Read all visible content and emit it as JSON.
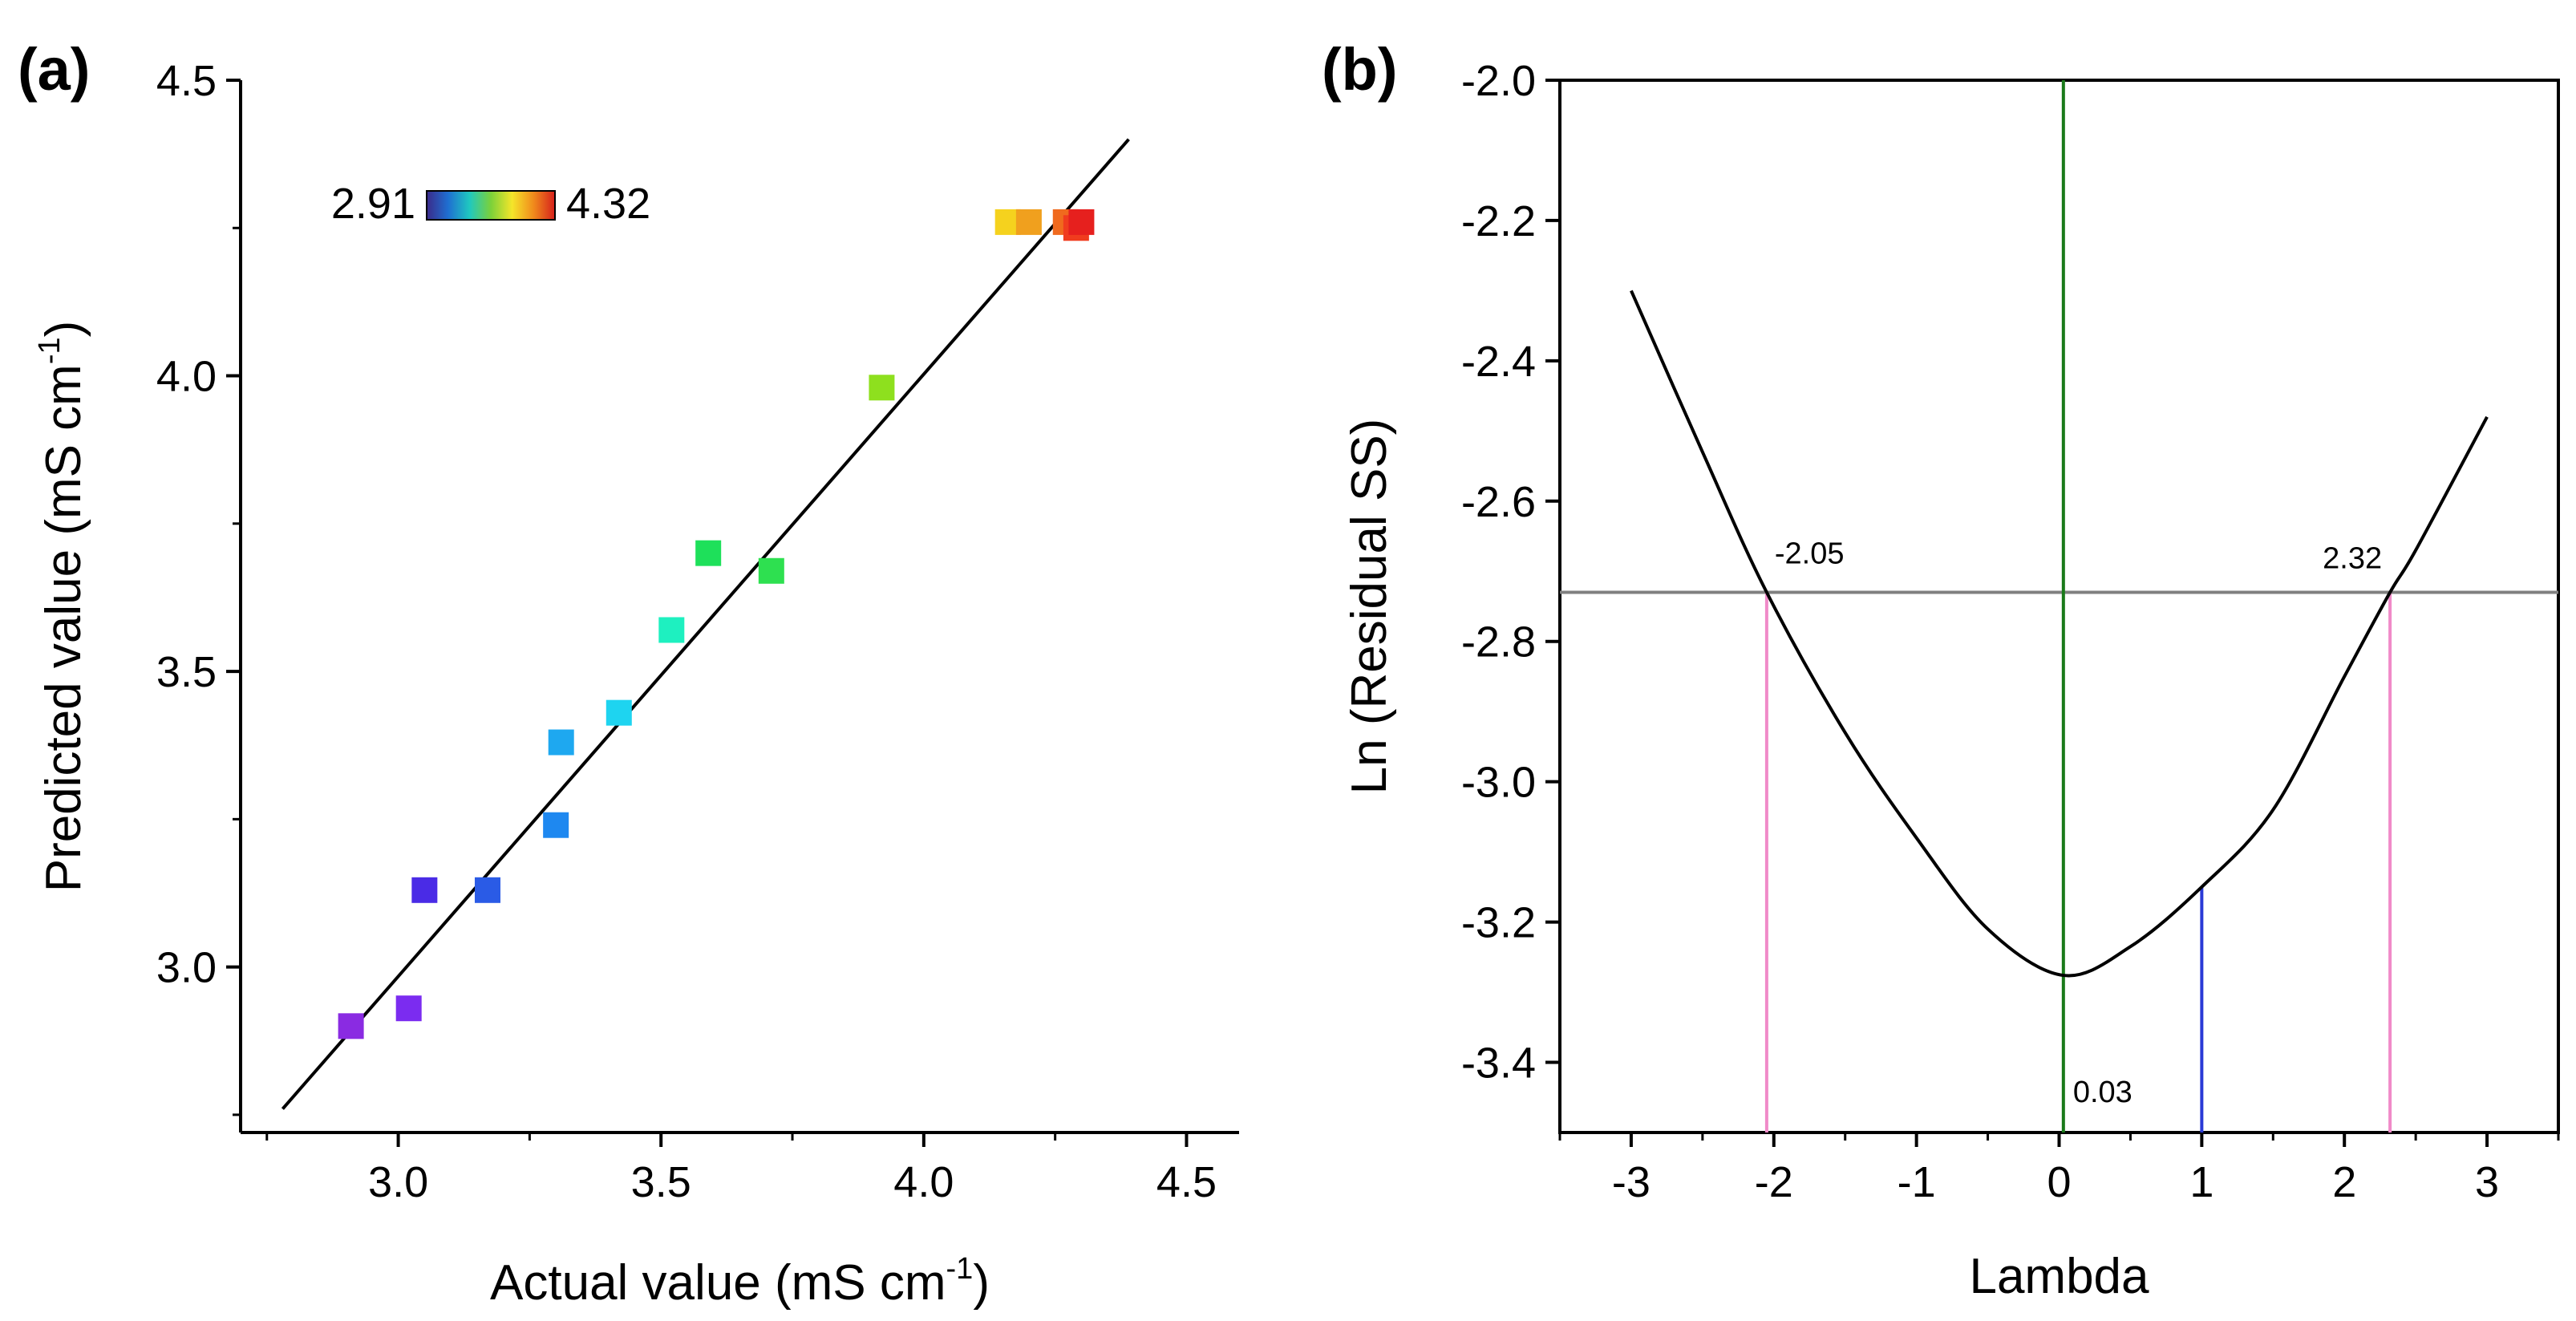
{
  "chart_data": [
    {
      "type": "scatter",
      "panel_label": "(a)",
      "xlabel": "Actual value (mS cm",
      "xlabel_sup": "-1",
      "xlabel_end": ")",
      "ylabel": "Predicted value (mS cm",
      "ylabel_sup": "-1",
      "ylabel_end": ")",
      "xlim": [
        2.7,
        4.6
      ],
      "ylim": [
        2.72,
        4.5
      ],
      "xticks": [
        3.0,
        3.5,
        4.0,
        4.5
      ],
      "xtick_labels": [
        "3.0",
        "3.5",
        "4.0",
        "4.5"
      ],
      "yticks": [
        3.0,
        3.5,
        4.0,
        4.5
      ],
      "ytick_labels": [
        "3.0",
        "3.5",
        "4.0",
        "4.5"
      ],
      "colorbar": {
        "min_label": "2.91",
        "max_label": "4.32",
        "colors": [
          "#3b2a8a",
          "#1f6fd1",
          "#1fc8c0",
          "#7bd13a",
          "#f5e52a",
          "#f08a1c",
          "#d6201c"
        ]
      },
      "fit_line": {
        "x": [
          2.78,
          4.39
        ],
        "y": [
          2.76,
          4.4
        ]
      },
      "points": [
        {
          "x": 2.91,
          "y": 2.9,
          "color": "#8a2be2"
        },
        {
          "x": 3.02,
          "y": 2.93,
          "color": "#7b2cf0"
        },
        {
          "x": 3.05,
          "y": 3.13,
          "color": "#4a2be6"
        },
        {
          "x": 3.17,
          "y": 3.13,
          "color": "#2a5be6"
        },
        {
          "x": 3.3,
          "y": 3.24,
          "color": "#1e88f0"
        },
        {
          "x": 3.31,
          "y": 3.38,
          "color": "#1ea8f0"
        },
        {
          "x": 3.42,
          "y": 3.43,
          "color": "#1ed4f0"
        },
        {
          "x": 3.52,
          "y": 3.57,
          "color": "#1ef0c0"
        },
        {
          "x": 3.59,
          "y": 3.7,
          "color": "#1ee05a"
        },
        {
          "x": 3.71,
          "y": 3.67,
          "color": "#2ee050"
        },
        {
          "x": 3.92,
          "y": 3.98,
          "color": "#8ee01e"
        },
        {
          "x": 4.16,
          "y": 4.26,
          "color": "#f5d21e"
        },
        {
          "x": 4.2,
          "y": 4.26,
          "color": "#f0a01e"
        },
        {
          "x": 4.27,
          "y": 4.26,
          "color": "#f06a1e"
        },
        {
          "x": 4.29,
          "y": 4.25,
          "color": "#f03c1e"
        },
        {
          "x": 4.3,
          "y": 4.26,
          "color": "#e6201e"
        }
      ]
    },
    {
      "type": "line",
      "panel_label": "(b)",
      "xlabel": "Lambda",
      "ylabel": "Ln (Residual SS)",
      "xlim": [
        -3.5,
        3.5
      ],
      "ylim": [
        -3.5,
        -2.0
      ],
      "xticks": [
        -3,
        -2,
        -1,
        0,
        1,
        2,
        3
      ],
      "xtick_labels": [
        "-3",
        "-2",
        "-1",
        "0",
        "1",
        "2",
        "3"
      ],
      "yticks": [
        -3.4,
        -3.2,
        -3.0,
        -2.8,
        -2.6,
        -2.4,
        -2.2,
        -2.0
      ],
      "ytick_labels": [
        "-3.4",
        "-3.2",
        "-3.0",
        "-2.8",
        "-2.6",
        "-2.4",
        "-2.2",
        "-2.0"
      ],
      "curve": {
        "x": [
          -3.0,
          -2.5,
          -2.05,
          -1.5,
          -1.0,
          -0.5,
          0.03,
          0.5,
          1.0,
          1.5,
          2.0,
          2.32,
          2.5,
          3.0
        ],
        "y": [
          -2.3,
          -2.53,
          -2.73,
          -2.93,
          -3.08,
          -3.21,
          -3.276,
          -3.235,
          -3.15,
          -3.04,
          -2.85,
          -2.73,
          -2.67,
          -2.48
        ]
      },
      "threshold_y": -2.73,
      "lambda_best": 0.03,
      "lambda_one": 1.0,
      "lambda_one_y": -3.15,
      "ci_low": -2.05,
      "ci_high": 2.32,
      "annotations": {
        "ci_low_label": "-2.05",
        "ci_high_label": "2.32",
        "best_label": "0.03"
      },
      "colors": {
        "curve": "#000000",
        "threshold": "#808080",
        "best": "#1a7a1a",
        "one": "#2a3ad6",
        "ci": "#f08ac8"
      }
    }
  ]
}
